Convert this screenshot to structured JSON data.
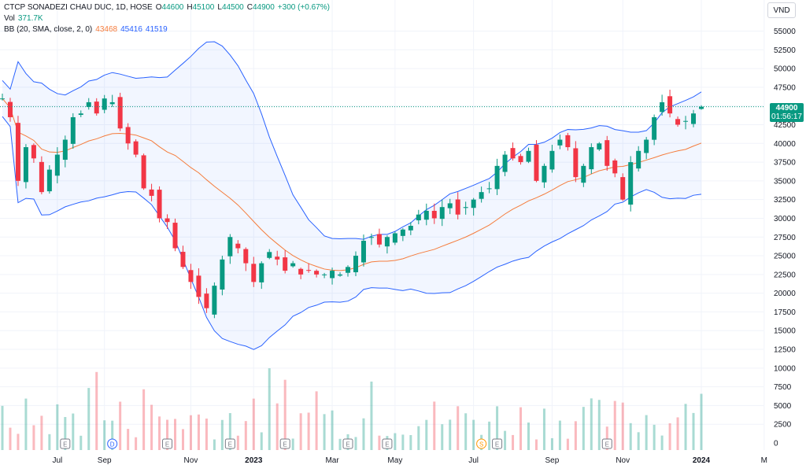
{
  "header": {
    "symbol_line": "CTCP SONADEZI CHAU DUC, 1D, HOSE",
    "open_label": "O",
    "open": "44600",
    "high_label": "H",
    "high": "45100",
    "low_label": "L",
    "low": "44500",
    "close_label": "C",
    "close": "44900",
    "change": "+300 (+0.67%)",
    "vol_label": "Vol",
    "vol_value": "371.7K",
    "bb_label": "BB (20, SMA, close, 2, 0)",
    "bb_mid": "43468",
    "bb_upper": "45416",
    "bb_lower": "41519"
  },
  "currency_button": "VND",
  "last_price": {
    "price": "44900",
    "countdown": "01:56:17"
  },
  "colors": {
    "up": "#089981",
    "down": "#f23645",
    "bb_basis": "#f57c3c",
    "bb_band": "#2962ff",
    "bb_fill": "#2962ff",
    "grid": "#f0f3fa",
    "axis_text": "#131722"
  },
  "chart_data": {
    "type": "candlestick",
    "title": "CTCP SONADEZI CHAU DUC, 1D, HOSE",
    "y_ticks": [
      0,
      2500,
      5000,
      7500,
      10000,
      12500,
      15000,
      17500,
      20000,
      22500,
      25000,
      27500,
      30000,
      32500,
      35000,
      37500,
      40000,
      42500,
      45000,
      47500,
      50000,
      52500,
      55000
    ],
    "y_tick_labels": [
      "0",
      "2500",
      "5000",
      "7500",
      "10000",
      "12500",
      "15000",
      "17500",
      "20000",
      "22500",
      "25000",
      "27500",
      "30000",
      "32500",
      "35000",
      "37500",
      "40000",
      "42500",
      "45000",
      "47500",
      "50000",
      "52500",
      "55000"
    ],
    "price_range": [
      17000,
      55000
    ],
    "x_labels": [
      {
        "label": "Jul",
        "day": 7,
        "bold": false
      },
      {
        "label": "Sep",
        "day": 13,
        "bold": false
      },
      {
        "label": "Nov",
        "day": 24,
        "bold": false
      },
      {
        "label": "2023",
        "day": 32,
        "bold": true
      },
      {
        "label": "Mar",
        "day": 42,
        "bold": false
      },
      {
        "label": "May",
        "day": 50,
        "bold": false
      },
      {
        "label": "Jul",
        "day": 60,
        "bold": false
      },
      {
        "label": "Sep",
        "day": 70,
        "bold": false
      },
      {
        "label": "Nov",
        "day": 79,
        "bold": false
      },
      {
        "label": "2024",
        "day": 89,
        "bold": true
      },
      {
        "label": "M",
        "day": 97,
        "bold": false
      }
    ],
    "events": [
      {
        "symbol": "E",
        "day": 8,
        "color": "#787b86"
      },
      {
        "symbol": "D",
        "day": 14,
        "color": "#2962ff"
      },
      {
        "symbol": "E",
        "day": 21,
        "color": "#787b86"
      },
      {
        "symbol": "E",
        "day": 29,
        "color": "#787b86"
      },
      {
        "symbol": "E",
        "day": 36,
        "color": "#787b86"
      },
      {
        "symbol": "E",
        "day": 44,
        "color": "#787b86"
      },
      {
        "symbol": "E",
        "day": 49,
        "color": "#787b86"
      },
      {
        "symbol": "S",
        "day": 61,
        "color": "#ff9800"
      },
      {
        "symbol": "E",
        "day": 63,
        "color": "#787b86"
      },
      {
        "symbol": "E",
        "day": 77,
        "color": "#787b86"
      }
    ],
    "close_anchors": [
      [
        0,
        46000
      ],
      [
        1,
        43500
      ],
      [
        2,
        35000
      ],
      [
        3,
        39500
      ],
      [
        4,
        38000
      ],
      [
        5,
        33500
      ],
      [
        6,
        36500
      ],
      [
        7,
        38500
      ],
      [
        8,
        40500
      ],
      [
        9,
        43500
      ],
      [
        10,
        44000
      ],
      [
        11,
        45500
      ],
      [
        12,
        44000
      ],
      [
        13,
        46000
      ],
      [
        14,
        45500
      ],
      [
        15,
        42000
      ],
      [
        16,
        40000
      ],
      [
        17,
        38500
      ],
      [
        18,
        34000
      ],
      [
        19,
        33000
      ],
      [
        20,
        30000
      ],
      [
        21,
        29500
      ],
      [
        22,
        26000
      ],
      [
        23,
        23500
      ],
      [
        24,
        21500
      ],
      [
        25,
        19500
      ],
      [
        26,
        18000
      ],
      [
        27,
        21000
      ],
      [
        28,
        24500
      ],
      [
        29,
        27500
      ],
      [
        30,
        26000
      ],
      [
        31,
        24000
      ],
      [
        32,
        21500
      ],
      [
        33,
        24000
      ],
      [
        34,
        25500
      ],
      [
        35,
        24500
      ],
      [
        36,
        23000
      ],
      [
        37,
        24000
      ],
      [
        38,
        22500
      ],
      [
        39,
        23000
      ],
      [
        40,
        22500
      ],
      [
        41,
        22500
      ],
      [
        42,
        23000
      ],
      [
        43,
        22500
      ],
      [
        44,
        23500
      ],
      [
        45,
        25000
      ],
      [
        46,
        27000
      ],
      [
        47,
        27500
      ],
      [
        48,
        26500
      ],
      [
        49,
        27500
      ],
      [
        50,
        28000
      ],
      [
        51,
        28500
      ],
      [
        52,
        29000
      ],
      [
        53,
        30500
      ],
      [
        54,
        31000
      ],
      [
        55,
        30000
      ],
      [
        56,
        31500
      ],
      [
        57,
        32000
      ],
      [
        58,
        30500
      ],
      [
        59,
        31500
      ],
      [
        60,
        32500
      ],
      [
        61,
        33500
      ],
      [
        62,
        34000
      ],
      [
        63,
        37000
      ],
      [
        64,
        38500
      ],
      [
        65,
        38000
      ],
      [
        66,
        37500
      ],
      [
        67,
        39000
      ],
      [
        68,
        35000
      ],
      [
        69,
        37000
      ],
      [
        70,
        39000
      ],
      [
        71,
        40500
      ],
      [
        72,
        39500
      ],
      [
        73,
        35500
      ],
      [
        74,
        37000
      ],
      [
        75,
        39500
      ],
      [
        76,
        40000
      ],
      [
        77,
        37000
      ],
      [
        78,
        36000
      ],
      [
        79,
        32500
      ],
      [
        80,
        37500
      ],
      [
        81,
        39000
      ],
      [
        82,
        40500
      ],
      [
        83,
        43500
      ],
      [
        84,
        45500
      ],
      [
        85,
        44000
      ],
      [
        86,
        42500
      ],
      [
        87,
        43000
      ],
      [
        88,
        44000
      ],
      [
        89,
        44900
      ]
    ],
    "volume_scale_max": 15000,
    "last_price": 44900,
    "bollinger": {
      "length": 20,
      "source": "close",
      "mult": 2,
      "offset": 0,
      "basis": 43468,
      "upper": 45416,
      "lower": 41519
    }
  }
}
